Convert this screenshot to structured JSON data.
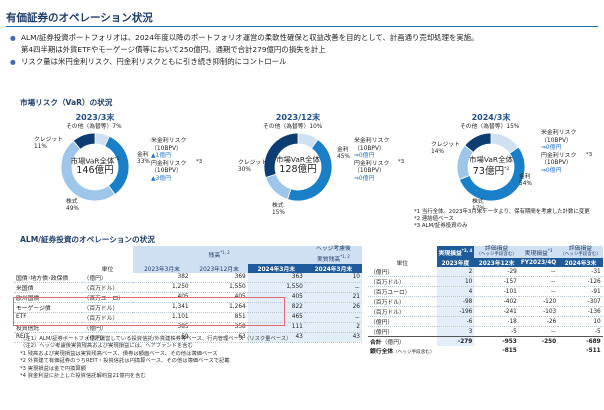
{
  "header": {
    "title": "有価証券のオペレーション状況"
  },
  "bullets": [
    "ALM/証券投資ポートフォリオは、2024年度以降のポートフォリオ運営の柔軟性確保と収益改善を目的として、計画通り売却処理を実施。",
    "第4四半期は外貨ETFやモーゲージ債等において250億円、通期で合計279億円の損失を計上",
    "リスク量は米円金利リスク、円金利リスクともに引き続き抑制的にコントロール"
  ],
  "market_risk": {
    "section_title": "市場リスク（VaR）の状況",
    "donuts": [
      {
        "period": "2023/3末",
        "center_line1": "市場VaR全体",
        "center_line2": "146億円",
        "center_sup": "*1",
        "slices": [
          {
            "label": "その他（為替等）",
            "pct": 7,
            "color": "#cfe0f2"
          },
          {
            "label": "金利",
            "pct": 33,
            "color": "#1a7fc9"
          },
          {
            "label": "株式",
            "pct": 49,
            "color": "#9dc6ea"
          },
          {
            "label": "クレジット",
            "pct": 11,
            "color": "#0d3d73"
          }
        ],
        "labels": {
          "other": "その他（為替等）7%",
          "rate": [
            "金利",
            "33%"
          ],
          "equity": [
            "株式",
            "49%"
          ],
          "credit": [
            "クレジット",
            "11%"
          ]
        },
        "risk": {
          "usd_title": [
            "米金利リスク",
            "（10BPV）"
          ],
          "usd_val": "▲1億円",
          "yen_title": [
            "円金利リスク",
            "（10BPV）"
          ],
          "yen_val": "▲3億円",
          "sup": "*3"
        }
      },
      {
        "period": "2023/12末",
        "center_line1": "市場VaR全体",
        "center_line2": "128億円",
        "center_sup": "",
        "slices": [
          {
            "label": "その他（為替等）",
            "pct": 10,
            "color": "#cfe0f2"
          },
          {
            "label": "金利",
            "pct": 45,
            "color": "#1a7fc9"
          },
          {
            "label": "株式",
            "pct": 15,
            "color": "#9dc6ea"
          },
          {
            "label": "クレジット",
            "pct": 30,
            "color": "#0d3d73"
          }
        ],
        "labels": {
          "other": "その他（為替等）10%",
          "rate": [
            "金利",
            "45%"
          ],
          "equity": [
            "株式",
            "15%"
          ],
          "credit": [
            "クレジット",
            "30%"
          ]
        },
        "risk": {
          "usd_title": [
            "米金利リスク",
            "（10BPV）"
          ],
          "usd_val": "⇒0億円",
          "yen_title": [
            "円金利リスク",
            "（10BPV）"
          ],
          "yen_val": "⇒0億円",
          "sup": "*3"
        }
      },
      {
        "period": "2024/3末",
        "center_line1": "市場VaR全体",
        "center_line2": "73億円",
        "center_sup": "*2",
        "slices": [
          {
            "label": "その他（為替等）",
            "pct": 15,
            "color": "#cfe0f2"
          },
          {
            "label": "金利",
            "pct": 54,
            "color": "#1a7fc9"
          },
          {
            "label": "株式",
            "pct": 17,
            "color": "#9dc6ea"
          },
          {
            "label": "クレジット",
            "pct": 14,
            "color": "#0d3d73"
          }
        ],
        "labels": {
          "other": "その他（為替等）15%",
          "rate": [
            "金利",
            "54%"
          ],
          "equity": [
            "株式",
            "17%"
          ],
          "credit": [
            "クレジット",
            "14%"
          ]
        },
        "risk": {
          "usd_title": [
            "米金利リスク",
            "（10BPV）"
          ],
          "usd_val": "⇒0億円",
          "yen_title": [
            "円金利リスク",
            "（10BPV）"
          ],
          "yen_val": "⇒0億円",
          "sup": "*3"
        }
      }
    ],
    "footnotes": [
      "*1 当行全体。2023年3月末データより、保有期間を考慮した計数に変更",
      "*2 連結値ベース",
      "*3 ALM/証券投資のみ"
    ]
  },
  "operations": {
    "section_title": "ALM/証券投資のオペレーションの状況",
    "left_table": {
      "group_balance": "残高",
      "group_balance_sup": "*1, 2",
      "group_hedge": [
        "ヘッジ考慮後",
        "実質残高"
      ],
      "group_hedge_sup": "*1, 2",
      "unit_label": "単位",
      "col_headers": [
        "2023年3月末",
        "2023年12月末",
        "2024年3月末",
        "2024年3月末"
      ],
      "rows": [
        {
          "name": "国債･地方債･政保債",
          "unit": "（億円）",
          "v": [
            "382",
            "369",
            "363",
            "10"
          ]
        },
        {
          "name": "米国債",
          "unit": "（百万ドル）",
          "v": [
            "1,250",
            "1,550",
            "1,550",
            "－"
          ]
        },
        {
          "name": "欧州国債",
          "unit": "（百万ユーロ）",
          "v": [
            "405",
            "405",
            "405",
            "21"
          ]
        },
        {
          "name": "モーゲージ債",
          "unit": "（百万ドル）",
          "v": [
            "1,341",
            "1,264",
            "822",
            "26"
          ]
        },
        {
          "name": "ETF",
          "unit": "（百万ドル）",
          "v": [
            "1,101",
            "851",
            "465",
            "－"
          ]
        },
        {
          "name": "投資信託",
          "unit": "（億円）",
          "v": [
            "385",
            "358",
            "111",
            "2"
          ]
        },
        {
          "name": "REIT",
          "unit": "（億円）",
          "v": [
            "69",
            "63",
            "43",
            "43"
          ]
        }
      ]
    },
    "right_table": {
      "group_real": "実現損益",
      "group_real_sup": "*3, 4",
      "group_eval": "評価損益",
      "group_eval_sub": "（ヘッジ手段含む）",
      "group_real2": "実現損益",
      "group_real2_sup": "*3",
      "group_eval2": "評価損益",
      "group_eval2_sub": "（ヘッジ手段含む）",
      "unit_label": "単位",
      "col_headers": [
        "2023年度",
        "2023年12末",
        "FY2023/4Q",
        "2024年3末"
      ],
      "rows": [
        {
          "unit": "（億円）",
          "v": [
            "2",
            "-29",
            "－",
            "-31"
          ]
        },
        {
          "unit": "（百万ドル）",
          "v": [
            "10",
            "-157",
            "－",
            "-126"
          ]
        },
        {
          "unit": "（百万ユーロ）",
          "v": [
            "4",
            "-101",
            "－",
            "-91"
          ]
        },
        {
          "unit": "（百万ドル）",
          "v": [
            "-98",
            "-402",
            "-120",
            "-307"
          ]
        },
        {
          "unit": "（百万ドル）",
          "v": [
            "-196",
            "-241",
            "-103",
            "-136"
          ]
        },
        {
          "unit": "（億円）",
          "v": [
            "-6",
            "-18",
            "-26",
            "10"
          ]
        },
        {
          "unit": "（億円）",
          "v": [
            "3",
            "-5",
            "－",
            "-5"
          ]
        }
      ],
      "total_label": "合計",
      "total_unit": "（億円）",
      "total": [
        "-279",
        "-953",
        "-250",
        "-689"
      ],
      "bank_label": "銀行全体",
      "bank_unit": "（ヘッジ手段含む）",
      "bank": [
        "",
        "-815",
        "",
        "-511"
      ]
    },
    "notes": [
      "（注1）ALM/証券ポートフォリオ運営している投資信託/外貨建株券等ベース、行内管理ベース（リスク量ベース）",
      "（注2）ヘッジ考慮後実質残高および実現損益には、ヘアファンドを含む",
      "*1 残高および実現損益は実質残高ベース、債券は額面ベース、その他は簿価ベース",
      "*2 外貨建て有価証券のうちREIT・投資信託は円換算ベース、その他は簿価ベースで記載",
      "*3 実現損益は金で円換算額",
      "*4 資金利益に計上した投資信託解約益21億円を含む"
    ]
  }
}
